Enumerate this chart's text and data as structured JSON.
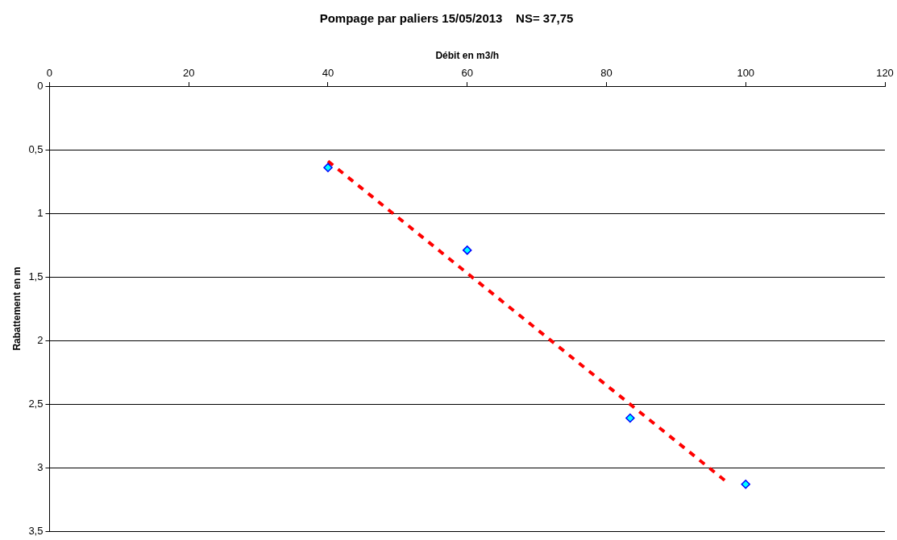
{
  "chart_data": {
    "type": "scatter",
    "title": "Pompage par paliers 15/05/2013    NS= 37,75",
    "xlabel": "Débit en m3/h",
    "ylabel": "Rabattement en m",
    "x": [
      40,
      60,
      83.4,
      100
    ],
    "series": [
      {
        "type": "scatter",
        "color": "#00ffff",
        "values": [
          0.64,
          1.29,
          2.61,
          3.13
        ],
        "marker": "diamond"
      },
      {
        "type": "line",
        "color": "#ff0000",
        "x": [
          40,
          97
        ],
        "values": [
          0.59,
          3.1
        ],
        "marker": "none",
        "line_style": "dashed"
      }
    ],
    "xlim": [
      0,
      120
    ],
    "xticks": [
      0,
      20,
      40,
      60,
      80,
      100,
      120
    ],
    "ylim": [
      3.5,
      0
    ],
    "yticks": [
      {
        "value": 0,
        "label": "0"
      },
      {
        "value": 0.5,
        "label": "0,5"
      },
      {
        "value": 1,
        "label": "1"
      },
      {
        "value": 1.5,
        "label": "1,5"
      },
      {
        "value": 2,
        "label": "2"
      },
      {
        "value": 2.5,
        "label": "2,5"
      },
      {
        "value": 3,
        "label": "3"
      },
      {
        "value": 3.5,
        "label": "3,5"
      }
    ],
    "grid": "y",
    "legend": false
  }
}
